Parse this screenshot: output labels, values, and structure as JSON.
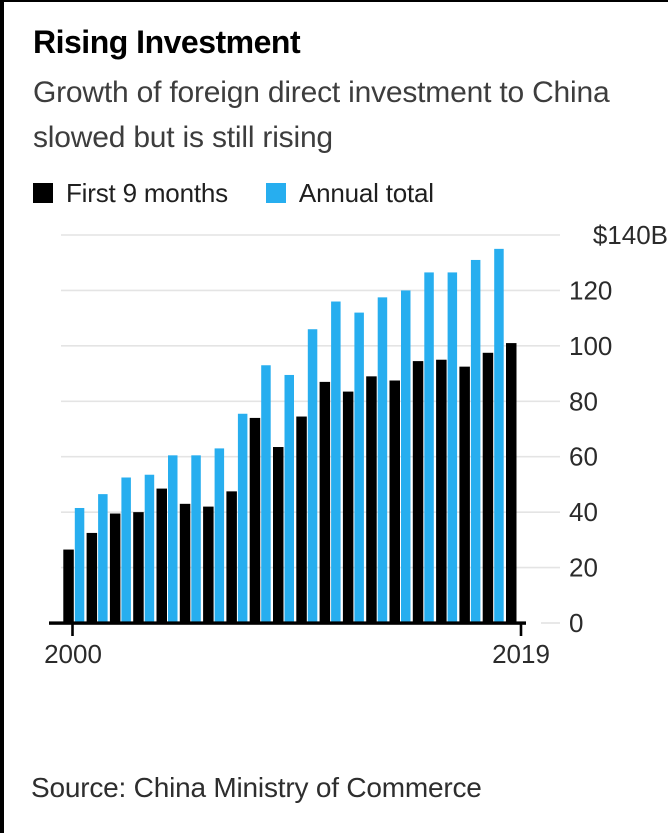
{
  "header": {
    "title": "Rising Investment",
    "subtitle": "Growth of foreign direct investment to China slowed but is still rising"
  },
  "legend": [
    {
      "label": "First 9 months",
      "color": "#000000"
    },
    {
      "label": "Annual total",
      "color": "#27aeef"
    }
  ],
  "chart_data": {
    "type": "bar",
    "title": "Rising Investment",
    "subtitle": "Growth of foreign direct investment to China slowed but is still rising",
    "categories": [
      2000,
      2001,
      2002,
      2003,
      2004,
      2005,
      2006,
      2007,
      2008,
      2009,
      2010,
      2011,
      2012,
      2013,
      2014,
      2015,
      2016,
      2017,
      2018,
      2019
    ],
    "series": [
      {
        "name": "First 9 months",
        "color": "#000000",
        "values": [
          26.5,
          32.5,
          39.5,
          40,
          48.5,
          43,
          42,
          47.5,
          74,
          63.5,
          74.5,
          87,
          83.5,
          89,
          87.5,
          94.5,
          95,
          92.5,
          97.5,
          101
        ]
      },
      {
        "name": "Annual total",
        "color": "#27aeef",
        "values": [
          41.5,
          46.5,
          52.5,
          53.5,
          60.5,
          60.5,
          63,
          75.5,
          93,
          89.5,
          106,
          116,
          112,
          117.5,
          120,
          126.5,
          126.5,
          131,
          135,
          null
        ]
      }
    ],
    "ylim": [
      0,
      140
    ],
    "yticks": [
      0,
      20,
      40,
      60,
      80,
      100,
      120
    ],
    "ytick_top_label": "$140B",
    "xtick_labels": [
      "2000",
      "2019"
    ],
    "grid": "horizontal",
    "gridline_color": "#e4e4e4",
    "axis_color": "#000000",
    "tick_label_color": "#2b2b2b",
    "legend_position": "top"
  },
  "source": {
    "text": "Source: China Ministry of Commerce"
  }
}
